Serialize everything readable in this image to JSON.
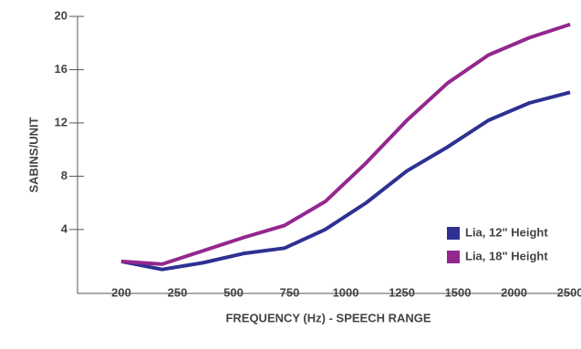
{
  "chart_data": {
    "type": "line",
    "xlabel": "FREQUENCY (Hz) - SPEECH RANGE",
    "ylabel": "SABINS/UNIT",
    "x": [
      0,
      0.727,
      1.455,
      2.182,
      2.909,
      3.636,
      4.364,
      5.091,
      5.818,
      6.545,
      7.273,
      8
    ],
    "xlim": [
      -0.78,
      8.08
    ],
    "xticks": [
      {
        "value": 0,
        "label": "200"
      },
      {
        "value": 1,
        "label": "250"
      },
      {
        "value": 2,
        "label": "500"
      },
      {
        "value": 3,
        "label": "750"
      },
      {
        "value": 4,
        "label": "1000"
      },
      {
        "value": 5,
        "label": "1250"
      },
      {
        "value": 6,
        "label": "1500"
      },
      {
        "value": 7,
        "label": "2000"
      },
      {
        "value": 8,
        "label": "2500"
      }
    ],
    "ylim": [
      -0.8,
      20
    ],
    "yticks": [
      4,
      8,
      12,
      16,
      20
    ],
    "legend": "lower right",
    "series": [
      {
        "name": "Lia, 12\" Height",
        "color": "#2e3192",
        "values": [
          1.6,
          1.0,
          1.5,
          2.2,
          2.6,
          4.0,
          6.0,
          8.4,
          10.2,
          12.2,
          13.5,
          14.3
        ]
      },
      {
        "name": "Lia, 18\" Height",
        "color": "#93278f",
        "values": [
          1.6,
          1.4,
          2.4,
          3.4,
          4.3,
          6.1,
          9.0,
          12.2,
          15.0,
          17.1,
          18.4,
          19.4
        ]
      }
    ]
  }
}
